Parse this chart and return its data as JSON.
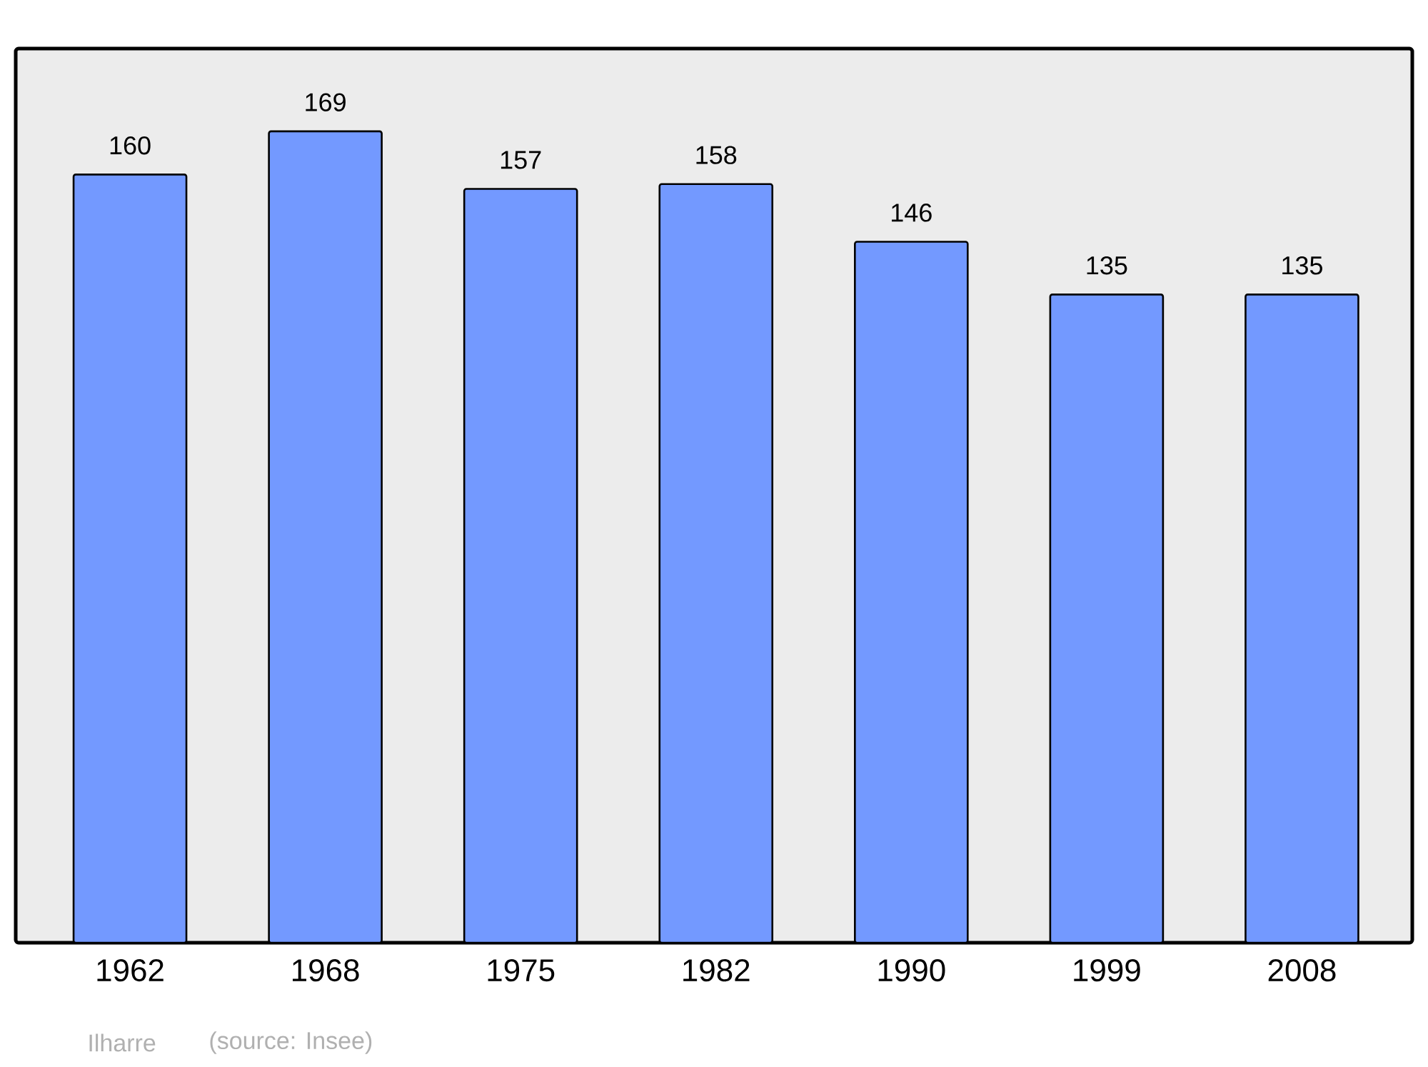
{
  "chart_data": {
    "type": "bar",
    "categories": [
      "1962",
      "1968",
      "1975",
      "1982",
      "1990",
      "1999",
      "2008"
    ],
    "values": [
      160,
      169,
      157,
      158,
      146,
      135,
      135
    ],
    "color": "#7399ff",
    "data_labels": true,
    "annotations": [
      "Ilharre",
      "(source: Insee)"
    ]
  }
}
